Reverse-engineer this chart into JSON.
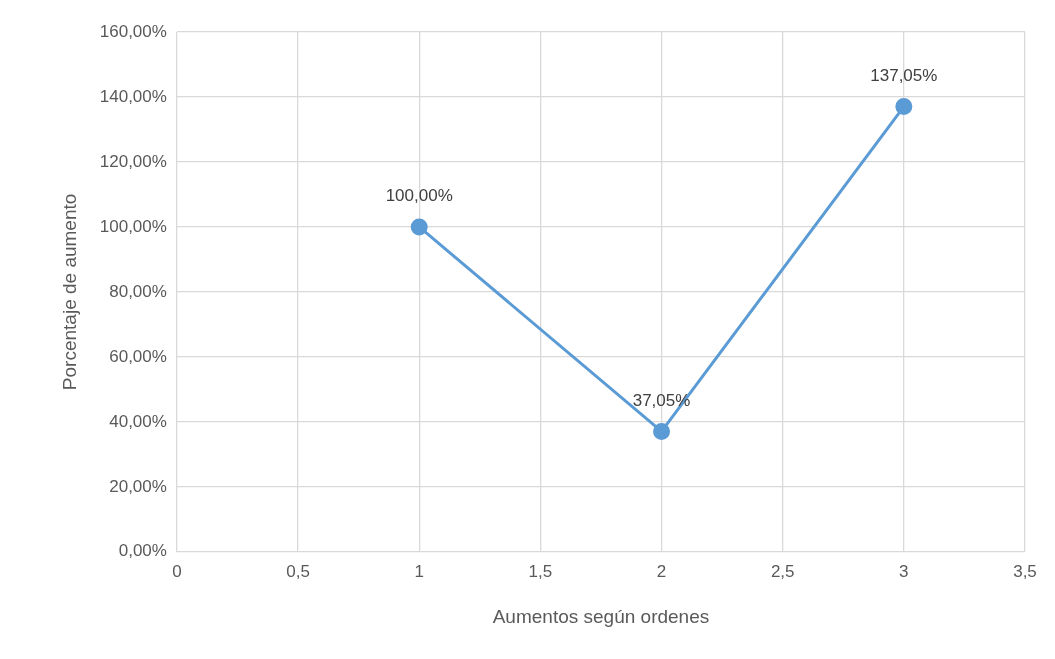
{
  "chart_data": {
    "type": "line",
    "xlabel": "Aumentos según ordenes",
    "ylabel": "Porcentaje de aumento",
    "x": [
      1,
      2,
      3
    ],
    "series": [
      {
        "color": "#5b9bd5",
        "values": [
          100,
          37.05,
          137.05
        ],
        "value_labels": [
          "100,00%",
          "37,05%",
          "137,05%"
        ]
      }
    ],
    "xlim": [
      0,
      3.5
    ],
    "xticks": [
      0,
      {
        "value": 0.5,
        "label": "0,5"
      },
      1,
      {
        "value": 1.5,
        "label": "1,5"
      },
      2,
      {
        "value": 2.5,
        "label": "2,5"
      },
      3,
      {
        "value": 3.5,
        "label": "3,5"
      }
    ],
    "ylim": [
      0,
      160
    ],
    "yticks": [
      {
        "value": 0,
        "label": "0,00%"
      },
      {
        "value": 20,
        "label": "20,00%"
      },
      {
        "value": 40,
        "label": "40,00%"
      },
      {
        "value": 60,
        "label": "60,00%"
      },
      {
        "value": 80,
        "label": "80,00%"
      },
      {
        "value": 100,
        "label": "100,00%"
      },
      {
        "value": 120,
        "label": "120,00%"
      },
      {
        "value": 140,
        "label": "140,00%"
      },
      {
        "value": 160,
        "label": "160,00%"
      }
    ],
    "grid": true,
    "marker": "circle",
    "line_style": "solid",
    "legend": false
  }
}
